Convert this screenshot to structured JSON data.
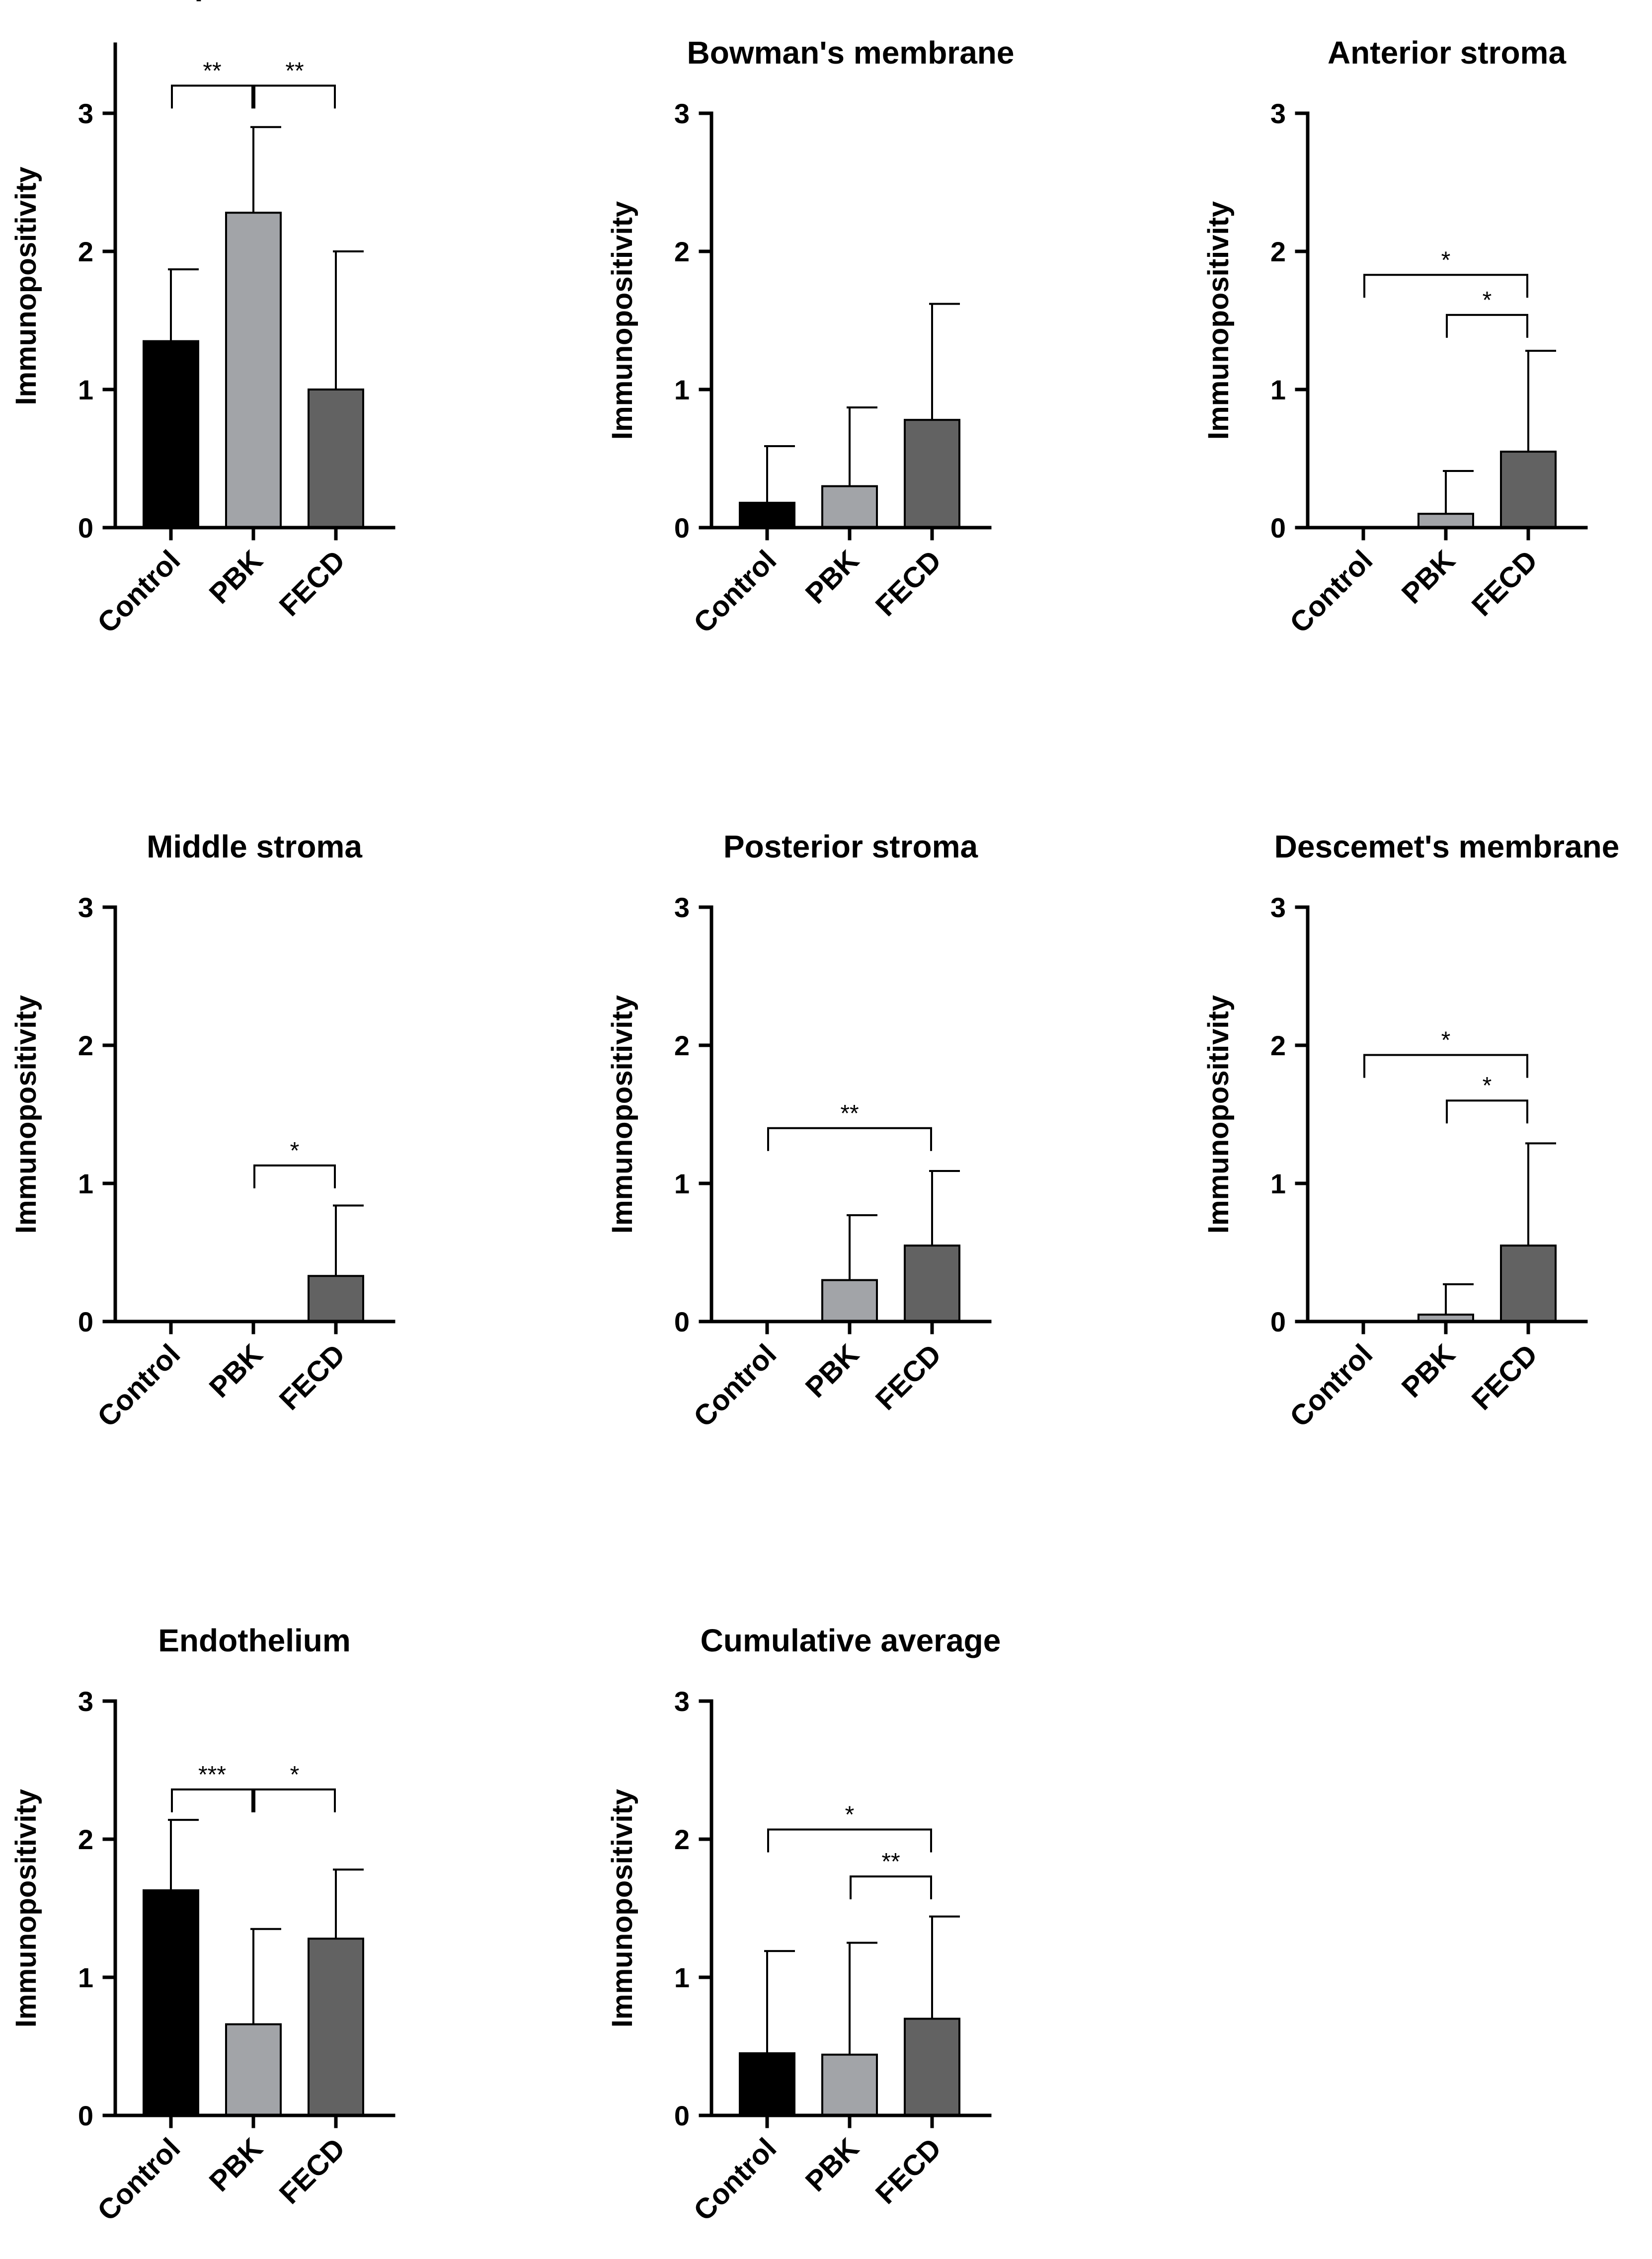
{
  "figure": {
    "ylabel": "Immunopositivity",
    "categories": [
      "Control",
      "PBK",
      "FECD"
    ],
    "colors": {
      "Control": "#000000",
      "PBK": "#a2a4a8",
      "FECD": "#626262"
    }
  },
  "chart_data": [
    {
      "type": "bar",
      "title": "Epithelium",
      "ylabel": "Immunopositivity",
      "categories": [
        "Control",
        "PBK",
        "FECD"
      ],
      "values": [
        1.35,
        2.28,
        1.0
      ],
      "errors": [
        0.52,
        0.62,
        1.0
      ],
      "ylim": [
        0,
        3.5
      ],
      "yticks": [
        0,
        1,
        2,
        3
      ],
      "significance": [
        {
          "from": 0,
          "to": 1,
          "label": "**",
          "y": 3.2
        },
        {
          "from": 1,
          "to": 2,
          "label": "**",
          "y": 3.2
        }
      ]
    },
    {
      "type": "bar",
      "title": "Bowman's membrane",
      "ylabel": "Immunopositivity",
      "categories": [
        "Control",
        "PBK",
        "FECD"
      ],
      "values": [
        0.18,
        0.3,
        0.78
      ],
      "errors": [
        0.41,
        0.57,
        0.84
      ],
      "ylim": [
        0,
        3
      ],
      "yticks": [
        0,
        1,
        2,
        3
      ],
      "significance": []
    },
    {
      "type": "bar",
      "title": "Anterior stroma",
      "ylabel": "Immunopositivity",
      "categories": [
        "Control",
        "PBK",
        "FECD"
      ],
      "values": [
        0,
        0.1,
        0.55
      ],
      "errors": [
        0,
        0.31,
        0.73
      ],
      "ylim": [
        0,
        3
      ],
      "yticks": [
        0,
        1,
        2,
        3
      ],
      "significance": [
        {
          "from": 0,
          "to": 2,
          "label": "*",
          "y": 1.83
        },
        {
          "from": 1,
          "to": 2,
          "label": "*",
          "y": 1.54
        }
      ]
    },
    {
      "type": "bar",
      "title": "Middle stroma",
      "ylabel": "Immunopositivity",
      "categories": [
        "Control",
        "PBK",
        "FECD"
      ],
      "values": [
        0,
        0,
        0.33
      ],
      "errors": [
        0,
        0,
        0.51
      ],
      "ylim": [
        0,
        3
      ],
      "yticks": [
        0,
        1,
        2,
        3
      ],
      "significance": [
        {
          "from": 1,
          "to": 2,
          "label": "*",
          "y": 1.13
        }
      ]
    },
    {
      "type": "bar",
      "title": "Posterior stroma",
      "ylabel": "Immunopositivity",
      "categories": [
        "Control",
        "PBK",
        "FECD"
      ],
      "values": [
        0,
        0.3,
        0.55
      ],
      "errors": [
        0,
        0.47,
        0.54
      ],
      "ylim": [
        0,
        3
      ],
      "yticks": [
        0,
        1,
        2,
        3
      ],
      "significance": [
        {
          "from": 0,
          "to": 2,
          "label": "**",
          "y": 1.4
        }
      ]
    },
    {
      "type": "bar",
      "title": "Descemet's membrane",
      "ylabel": "Immunopositivity",
      "categories": [
        "Control",
        "PBK",
        "FECD"
      ],
      "values": [
        0,
        0.05,
        0.55
      ],
      "errors": [
        0,
        0.22,
        0.74
      ],
      "ylim": [
        0,
        3
      ],
      "yticks": [
        0,
        1,
        2,
        3
      ],
      "significance": [
        {
          "from": 0,
          "to": 2,
          "label": "*",
          "y": 1.93
        },
        {
          "from": 1,
          "to": 2,
          "label": "*",
          "y": 1.6
        }
      ]
    },
    {
      "type": "bar",
      "title": "Endothelium",
      "ylabel": "Immunopositivity",
      "categories": [
        "Control",
        "PBK",
        "FECD"
      ],
      "values": [
        1.63,
        0.66,
        1.28
      ],
      "errors": [
        0.51,
        0.69,
        0.5
      ],
      "ylim": [
        0,
        3
      ],
      "yticks": [
        0,
        1,
        2,
        3
      ],
      "significance": [
        {
          "from": 0,
          "to": 1,
          "label": "***",
          "y": 2.36
        },
        {
          "from": 1,
          "to": 2,
          "label": "*",
          "y": 2.36
        }
      ]
    },
    {
      "type": "bar",
      "title": "Cumulative average",
      "ylabel": "Immunopositivity",
      "categories": [
        "Control",
        "PBK",
        "FECD"
      ],
      "values": [
        0.45,
        0.44,
        0.7
      ],
      "errors": [
        0.74,
        0.81,
        0.74
      ],
      "ylim": [
        0,
        3
      ],
      "yticks": [
        0,
        1,
        2,
        3
      ],
      "significance": [
        {
          "from": 0,
          "to": 2,
          "label": "*",
          "y": 2.07
        },
        {
          "from": 1,
          "to": 2,
          "label": "**",
          "y": 1.73
        }
      ]
    }
  ]
}
